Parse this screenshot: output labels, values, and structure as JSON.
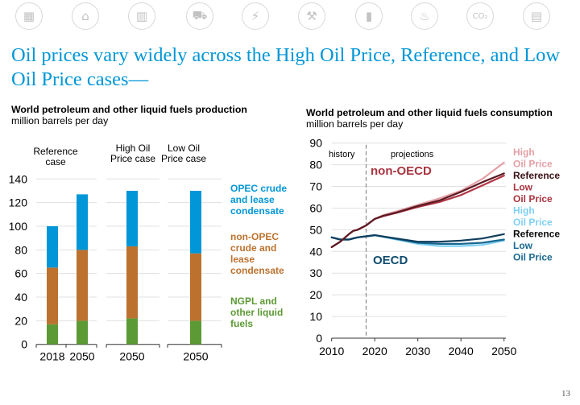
{
  "icons": [
    "energy-overview-icon",
    "industrial-icon",
    "buildings-icon",
    "transportation-icon",
    "electricity-icon",
    "petroleum-drilling-icon",
    "oil-barrel-icon",
    "natural-gas-flame-icon",
    "co2-emissions-icon",
    "document-icon"
  ],
  "icon_glyphs": [
    "▦",
    "⌂",
    "▥",
    "⛟",
    "⚡",
    "⚒",
    "▮",
    "♨",
    "CO₂",
    "▤"
  ],
  "title": "Oil prices vary widely across the High Oil Price, Reference, and Low Oil Price cases—",
  "page_number": "13",
  "chart_data": [
    {
      "type": "bar",
      "stacked": true,
      "title": "World petroleum and other liquid fuels production",
      "subtitle": "million barrels per day",
      "ylim": [
        0,
        140
      ],
      "yticks": [
        0,
        20,
        40,
        60,
        80,
        100,
        120,
        140
      ],
      "grid": true,
      "groups": [
        {
          "label": "Reference case",
          "categories": [
            "2018",
            "2050"
          ]
        },
        {
          "label": "High Oil Price case",
          "categories": [
            "2050"
          ]
        },
        {
          "label": "Low Oil Price case",
          "categories": [
            "2050"
          ]
        }
      ],
      "categories": [
        "2018",
        "2050",
        "2050",
        "2050"
      ],
      "series": [
        {
          "name": "NGPL and other liquid fuels",
          "color": "#5c9a35",
          "values": [
            17,
            20,
            22,
            20
          ]
        },
        {
          "name": "non-OPEC crude and lease condensate",
          "color": "#bc722e",
          "values": [
            48,
            60,
            61,
            57
          ]
        },
        {
          "name": "OPEC crude and lease condensate",
          "color": "#0096d7",
          "values": [
            35,
            47,
            47,
            53
          ]
        }
      ],
      "legend_placement": "right",
      "legend": [
        {
          "label": "OPEC crude and lease condensate",
          "lines": [
            "OPEC crude",
            "and lease",
            "condensate"
          ],
          "color": "#0096d7"
        },
        {
          "label": "non-OPEC crude and lease condensate",
          "lines": [
            "non-OPEC",
            "crude and",
            "lease",
            "condensate"
          ],
          "color": "#bc722e"
        },
        {
          "label": "NGPL and other liquid fuels",
          "lines": [
            "NGPL and",
            "other liquid",
            "fuels"
          ],
          "color": "#5c9a35"
        }
      ]
    },
    {
      "type": "line",
      "title": "World petroleum and other liquid fuels consumption",
      "subtitle": "million barrels per day",
      "xlim": [
        2010,
        2050
      ],
      "ylim": [
        0,
        90
      ],
      "xticks": [
        2010,
        2020,
        2030,
        2040,
        2050
      ],
      "yticks": [
        0,
        10,
        20,
        30,
        40,
        50,
        60,
        70,
        80,
        90
      ],
      "grid": true,
      "divider_year": 2018,
      "annotations": [
        "history",
        "projections",
        "non-OECD",
        "OECD"
      ],
      "annotation_colors": {
        "non-OECD": "#a9343f",
        "OECD": "#0f4c6e"
      },
      "series": [
        {
          "name": "non-OECD High Oil Price",
          "group": "non-OECD",
          "color": "#e5a0a6",
          "x": [
            2010,
            2012,
            2014,
            2015,
            2016,
            2018,
            2020,
            2022,
            2025,
            2030,
            2035,
            2040,
            2045,
            2050
          ],
          "y": [
            42,
            44.5,
            48,
            49.5,
            50,
            52,
            55,
            56.8,
            58.5,
            61.5,
            64.5,
            68,
            73.5,
            81
          ]
        },
        {
          "name": "non-OECD Reference",
          "group": "non-OECD",
          "color": "#5a1a22",
          "x": [
            2010,
            2012,
            2014,
            2015,
            2016,
            2018,
            2020,
            2022,
            2025,
            2030,
            2035,
            2040,
            2045,
            2050
          ],
          "y": [
            42,
            44.5,
            48,
            49.5,
            50,
            52,
            55,
            56.5,
            58,
            61,
            63.5,
            67.5,
            72,
            76
          ]
        },
        {
          "name": "non-OECD Low Oil Price",
          "group": "non-OECD",
          "color": "#b03645",
          "x": [
            2010,
            2012,
            2014,
            2015,
            2016,
            2018,
            2020,
            2022,
            2025,
            2030,
            2035,
            2040,
            2045,
            2050
          ],
          "y": [
            42,
            44.5,
            48,
            49.5,
            50,
            52,
            55,
            56.3,
            57.8,
            60.5,
            62.8,
            66,
            70.5,
            75
          ]
        },
        {
          "name": "OECD High Oil Price",
          "group": "OECD",
          "color": "#7fd0f3",
          "x": [
            2010,
            2012,
            2014,
            2016,
            2018,
            2020,
            2025,
            2030,
            2035,
            2040,
            2045,
            2050
          ],
          "y": [
            46.5,
            45.5,
            45.5,
            46.5,
            47,
            47.5,
            45.5,
            43.5,
            42.5,
            42.5,
            43,
            45
          ]
        },
        {
          "name": "OECD Reference",
          "group": "OECD",
          "color": "#0e3d5c",
          "x": [
            2010,
            2012,
            2014,
            2016,
            2018,
            2020,
            2025,
            2030,
            2035,
            2040,
            2045,
            2050
          ],
          "y": [
            46.5,
            45.5,
            45.5,
            46.5,
            47,
            47.5,
            46,
            44.5,
            44.5,
            45,
            46,
            48
          ]
        },
        {
          "name": "OECD Low Oil Price",
          "group": "OECD",
          "color": "#1a6890",
          "x": [
            2010,
            2012,
            2014,
            2016,
            2018,
            2020,
            2025,
            2030,
            2035,
            2040,
            2045,
            2050
          ],
          "y": [
            46.5,
            45.5,
            45.5,
            46.5,
            47,
            47.5,
            45.8,
            44,
            43.5,
            43.5,
            44,
            45.5
          ]
        }
      ],
      "legend_placement": "right",
      "legend": [
        {
          "label": "High Oil Price",
          "lines": [
            "High",
            "Oil Price"
          ],
          "color": "#e5a0a6"
        },
        {
          "label": "Reference",
          "lines": [
            "Reference"
          ],
          "color": "#3a1016"
        },
        {
          "label": "Low Oil Price",
          "lines": [
            "Low",
            "Oil Price"
          ],
          "color": "#a9343f"
        },
        {
          "label": "High Oil Price",
          "lines": [
            "High",
            "Oil Price"
          ],
          "color": "#7fd0f3"
        },
        {
          "label": "Reference",
          "lines": [
            "Reference"
          ],
          "color": "#0a0a0a"
        },
        {
          "label": "Low Oil Price",
          "lines": [
            "Low",
            "Oil Price"
          ],
          "color": "#1a6890"
        }
      ]
    }
  ]
}
